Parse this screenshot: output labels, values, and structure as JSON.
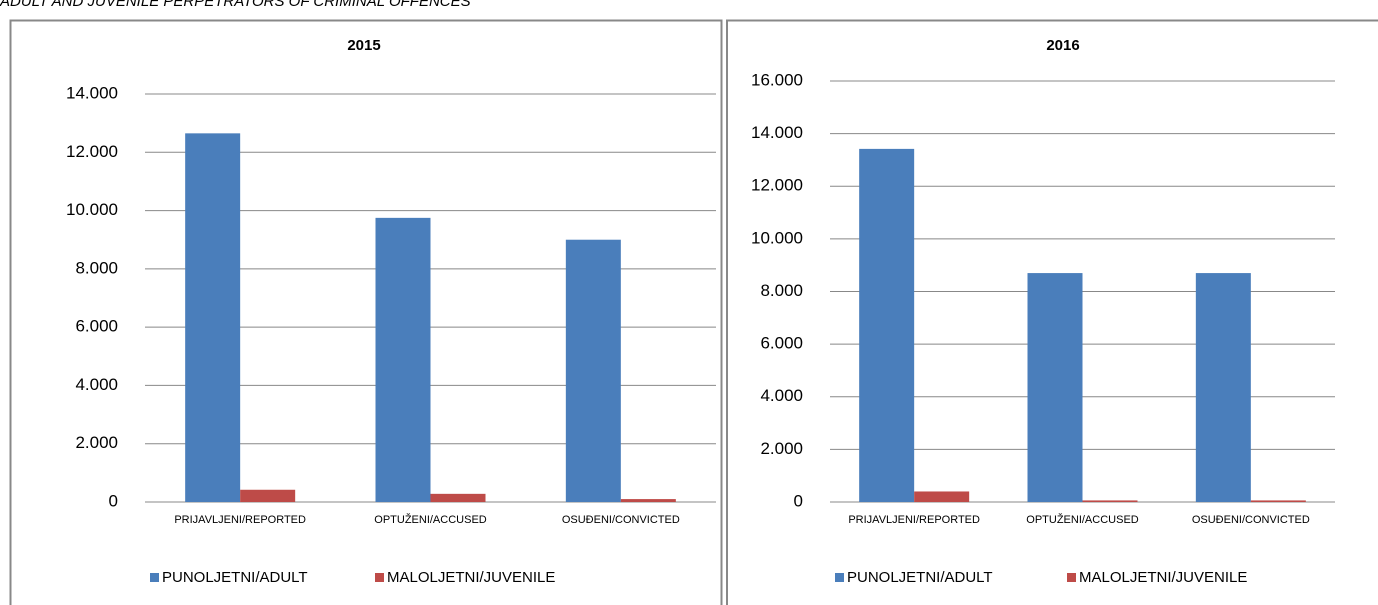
{
  "caption": "ADULT AND JUVENILE PERPETRATORS OF CRIMINAL OFFENCES",
  "chart_data": [
    {
      "type": "bar",
      "title": "2015",
      "categories": [
        "PRIJAVLJENI/REPORTED",
        "OPTUŽENI/ACCUSED",
        "OSUĐENI/CONVICTED"
      ],
      "series": [
        {
          "name": "PUNOLJETNI/ADULT",
          "color": "#4a7ebb",
          "values": [
            12650,
            9750,
            9000
          ]
        },
        {
          "name": "MALOLJETNI/JUVENILE",
          "color": "#be4b48",
          "values": [
            420,
            280,
            100
          ]
        }
      ],
      "ylim": [
        0,
        14000
      ],
      "yticks": [
        0,
        {
          "value": 2000,
          "label": "2.000"
        },
        {
          "value": 4000,
          "label": "4.000"
        },
        {
          "value": 6000,
          "label": "6.000"
        },
        {
          "value": 8000,
          "label": "8.000"
        },
        {
          "value": 10000,
          "label": "10.000"
        },
        {
          "value": 12000,
          "label": "12.000"
        },
        {
          "value": 14000,
          "label": "14.000"
        }
      ],
      "grid": true,
      "legend": "bottom"
    },
    {
      "type": "bar",
      "title": "2016",
      "categories": [
        "PRIJAVLJENI/REPORTED",
        "OPTUŽENI/ACCUSED",
        "OSUĐENI/CONVICTED"
      ],
      "series": [
        {
          "name": "PUNOLJETNI/ADULT",
          "color": "#4a7ebb",
          "values": [
            13420,
            8700,
            8700
          ]
        },
        {
          "name": "MALOLJETNI/JUVENILE",
          "color": "#be4b48",
          "values": [
            400,
            60,
            60
          ]
        }
      ],
      "ylim": [
        0,
        16000
      ],
      "yticks": [
        0,
        {
          "value": 2000,
          "label": "2.000"
        },
        {
          "value": 4000,
          "label": "4.000"
        },
        {
          "value": 6000,
          "label": "6.000"
        },
        {
          "value": 8000,
          "label": "8.000"
        },
        {
          "value": 10000,
          "label": "10.000"
        },
        {
          "value": 12000,
          "label": "12.000"
        },
        {
          "value": 14000,
          "label": "14.000"
        },
        {
          "value": 16000,
          "label": "16.000"
        }
      ],
      "grid": true,
      "legend": "bottom"
    }
  ]
}
